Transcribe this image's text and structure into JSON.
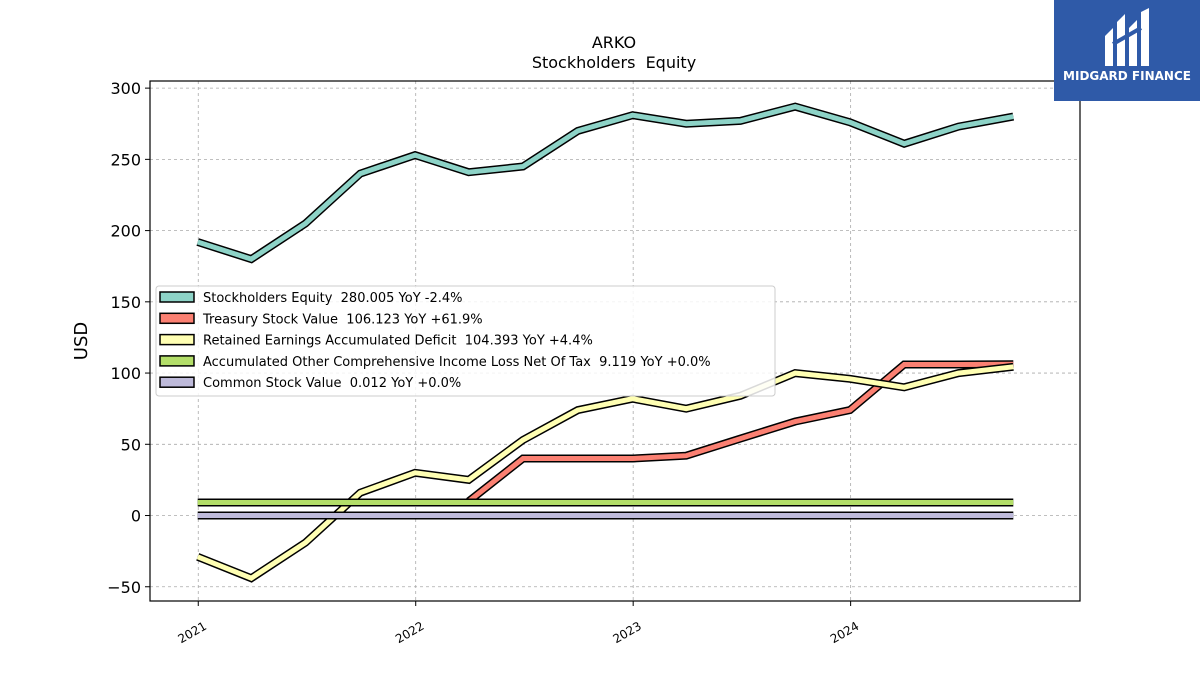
{
  "brand": {
    "name": "MIDGARD FINANCE",
    "color": "#2f5aa8"
  },
  "chart_data": {
    "type": "line",
    "title": "ARKO",
    "subtitle": "Stockholders  Equity",
    "xlabel": "",
    "ylabel": "USD",
    "ylim": [
      -60,
      305
    ],
    "yticks": [
      -50,
      0,
      50,
      100,
      150,
      200,
      250,
      300
    ],
    "xticks": [
      "2021",
      "2022",
      "2023",
      "2024"
    ],
    "grid": true,
    "legend_position": "center-left",
    "x": [
      "2020-12-31",
      "2021-03-31",
      "2021-06-30",
      "2021-09-30",
      "2021-12-31",
      "2022-03-31",
      "2022-06-30",
      "2022-09-30",
      "2022-12-31",
      "2023-03-31",
      "2023-06-30",
      "2023-09-30",
      "2023-12-31",
      "2024-03-31",
      "2024-06-30",
      "2024-09-30"
    ],
    "series": [
      {
        "name": "Stockholders Equity",
        "legend": "Stockholders Equity  280.005 YoY -2.4%",
        "color": "#8dd3c7",
        "values": [
          192,
          180,
          205,
          240,
          253,
          241,
          245,
          270,
          281,
          275,
          277,
          287,
          276,
          261,
          273,
          280.005
        ]
      },
      {
        "name": "Treasury Stock Value",
        "legend": "Treasury Stock Value  106.123 YoY +61.9%",
        "color": "#fb8072",
        "values": [
          null,
          null,
          null,
          null,
          null,
          10,
          40,
          40,
          40,
          42,
          54,
          66,
          74,
          106,
          106,
          106.123
        ]
      },
      {
        "name": "Retained Earnings Accumulated Deficit",
        "legend": "Retained Earnings Accumulated Deficit  104.393 YoY +4.4%",
        "color": "#ffffb3",
        "values": [
          -29,
          -44,
          -19,
          16,
          30,
          25,
          53,
          74,
          82,
          75,
          84,
          100,
          96,
          90,
          100,
          104.393
        ]
      },
      {
        "name": "Accumulated Other Comprehensive Income Loss Net Of Tax",
        "legend": "Accumulated Other Comprehensive Income Loss Net Of Tax  9.119 YoY +0.0%",
        "color": "#b3de69",
        "values": [
          9.119,
          9.119,
          9.119,
          9.119,
          9.119,
          9.119,
          9.119,
          9.119,
          9.119,
          9.119,
          9.119,
          9.119,
          9.119,
          9.119,
          9.119,
          9.119
        ]
      },
      {
        "name": "Common Stock Value",
        "legend": "Common Stock Value  0.012 YoY +0.0%",
        "color": "#bebada",
        "values": [
          0.012,
          0.012,
          0.012,
          0.012,
          0.012,
          0.012,
          0.012,
          0.012,
          0.012,
          0.012,
          0.012,
          0.012,
          0.012,
          0.012,
          0.012,
          0.012
        ]
      }
    ]
  }
}
